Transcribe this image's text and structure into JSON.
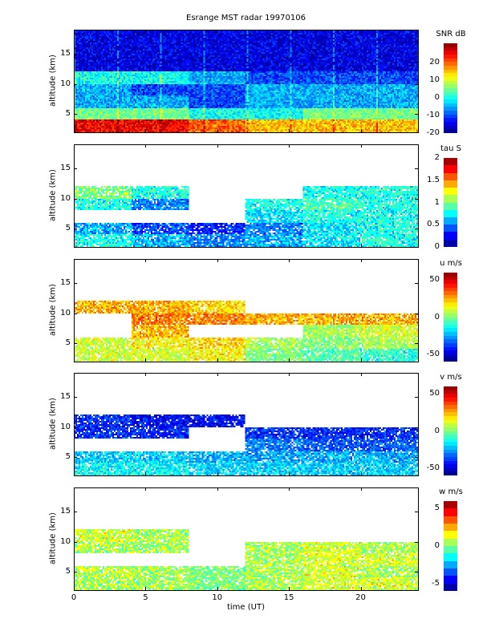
{
  "chart_data": {
    "type": "heatmap",
    "title": "Esrange MST radar 19970106",
    "xlabel": "time (UT)",
    "xlim": [
      0,
      24
    ],
    "xticks": [
      0,
      5,
      10,
      15,
      20
    ],
    "time_bins": [
      "0-4",
      "4-8",
      "8-12",
      "12-16",
      "16-20",
      "20-24"
    ],
    "altitude_bands_km": [
      "2-4",
      "4-6",
      "6-8",
      "8-10",
      "10-12",
      "12-19"
    ],
    "panels": [
      {
        "ylabel": "altitude (km)",
        "ylim": [
          2,
          19
        ],
        "yticks": [
          5,
          10,
          15
        ],
        "colorbar_label": "SNR dB",
        "clim": [
          -20,
          31
        ],
        "cticks": [
          -20,
          -10,
          0,
          10,
          20
        ],
        "levels": 24,
        "values": [
          [
            25,
            25,
            20,
            15,
            15,
            15
          ],
          [
            5,
            5,
            0,
            0,
            5,
            5
          ],
          [
            -5,
            -5,
            -10,
            -5,
            -5,
            -5
          ],
          [
            -5,
            -10,
            -10,
            -5,
            -5,
            -5
          ],
          [
            0,
            0,
            -5,
            -10,
            -10,
            -10
          ],
          [
            -15,
            -15,
            -15,
            -15,
            -15,
            -15
          ]
        ]
      },
      {
        "ylabel": "altitude (km)",
        "ylim": [
          2,
          19
        ],
        "yticks": [
          5,
          10,
          15
        ],
        "colorbar_label": "tau S",
        "clim": [
          0,
          2
        ],
        "cticks": [
          0,
          0.5,
          1,
          1.5,
          2
        ],
        "levels": 12,
        "values": [
          [
            0.8,
            0.6,
            0.5,
            0.6,
            0.7,
            0.8
          ],
          [
            0.6,
            0.4,
            0.3,
            0.5,
            0.7,
            0.8
          ],
          [
            null,
            null,
            null,
            0.7,
            0.8,
            0.8
          ],
          [
            0.8,
            0.5,
            null,
            0.8,
            0.9,
            0.8
          ],
          [
            1.0,
            0.8,
            null,
            null,
            0.8,
            0.8
          ],
          [
            null,
            null,
            null,
            null,
            null,
            null
          ]
        ]
      },
      {
        "ylabel": "altitude (km)",
        "ylim": [
          2,
          19
        ],
        "yticks": [
          5,
          10,
          15
        ],
        "colorbar_label": "u m/s",
        "clim": [
          -60,
          60
        ],
        "cticks": [
          -50,
          0,
          50
        ],
        "levels": 24,
        "values": [
          [
            10,
            10,
            15,
            0,
            -5,
            -10
          ],
          [
            10,
            15,
            20,
            5,
            0,
            5
          ],
          [
            null,
            25,
            null,
            null,
            5,
            10
          ],
          [
            null,
            30,
            30,
            25,
            25,
            25
          ],
          [
            25,
            25,
            20,
            null,
            null,
            null
          ],
          [
            null,
            null,
            null,
            null,
            null,
            null
          ]
        ]
      },
      {
        "ylabel": "altitude (km)",
        "ylim": [
          2,
          19
        ],
        "yticks": [
          5,
          10,
          15
        ],
        "colorbar_label": "v m/s",
        "clim": [
          -60,
          60
        ],
        "cticks": [
          -50,
          0,
          50
        ],
        "levels": 24,
        "values": [
          [
            -15,
            -15,
            -20,
            -20,
            -20,
            -20
          ],
          [
            -20,
            -20,
            -25,
            -25,
            -25,
            -25
          ],
          [
            null,
            null,
            null,
            -30,
            -35,
            -35
          ],
          [
            -40,
            -40,
            null,
            -40,
            -40,
            -40
          ],
          [
            -40,
            -45,
            -45,
            null,
            null,
            null
          ],
          [
            null,
            null,
            null,
            null,
            null,
            null
          ]
        ]
      },
      {
        "ylabel": "altitude (km)",
        "ylim": [
          2,
          19
        ],
        "yticks": [
          5,
          10,
          15
        ],
        "colorbar_label": "w m/s",
        "clim": [
          -6,
          6
        ],
        "cticks": [
          -5,
          0,
          5
        ],
        "levels": 12,
        "values": [
          [
            0.5,
            0.5,
            0,
            0.5,
            1,
            1
          ],
          [
            0.5,
            0.5,
            0,
            0.5,
            1,
            0.5
          ],
          [
            null,
            null,
            null,
            0.5,
            1,
            1
          ],
          [
            0.5,
            0.5,
            null,
            0.5,
            1,
            0.5
          ],
          [
            1,
            0.5,
            null,
            null,
            null,
            null
          ],
          [
            null,
            null,
            null,
            null,
            null,
            null
          ]
        ]
      }
    ]
  }
}
